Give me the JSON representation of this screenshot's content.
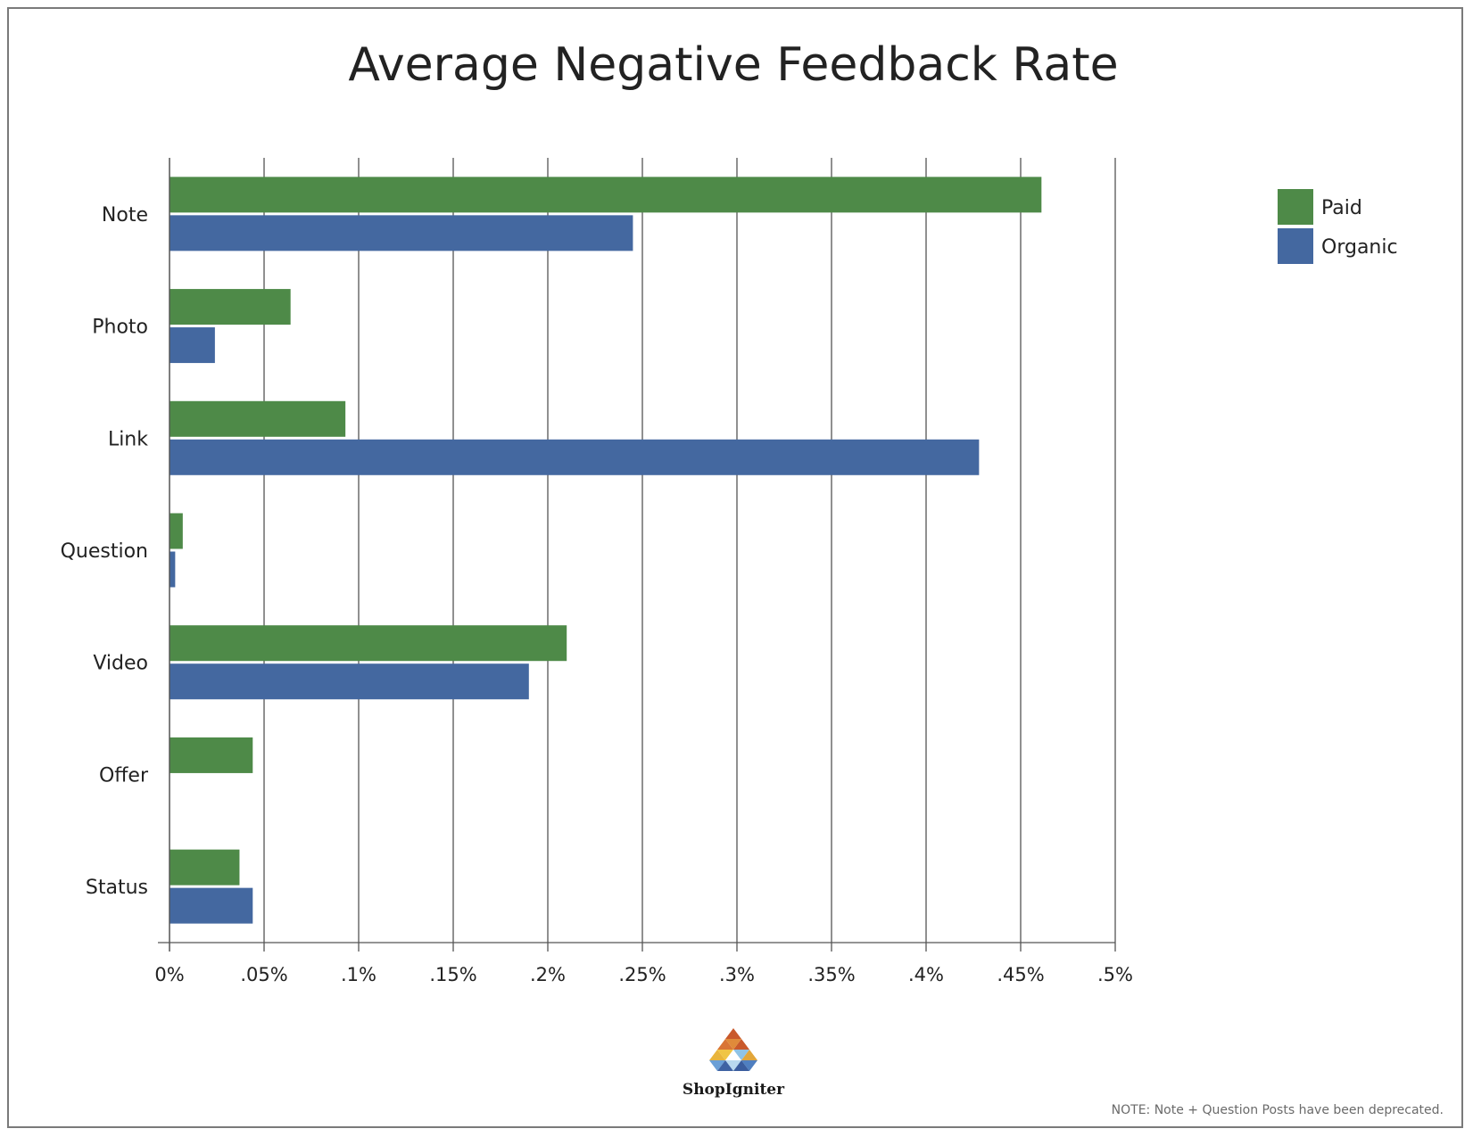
{
  "chart_data": {
    "type": "bar",
    "orientation": "horizontal",
    "title": "Average Negative Feedback Rate",
    "categories": [
      "Note",
      "Photo",
      "Link",
      "Question",
      "Video",
      "Offer",
      "Status"
    ],
    "series": [
      {
        "name": "Paid",
        "color": "#4e8a48",
        "values": [
          0.461,
          0.064,
          0.093,
          0.007,
          0.21,
          0.044,
          0.037
        ]
      },
      {
        "name": "Organic",
        "color": "#4468a0",
        "values": [
          0.245,
          0.024,
          0.428,
          0.003,
          0.19,
          null,
          0.044
        ]
      }
    ],
    "xlim": [
      0,
      0.5
    ],
    "x_ticks": [
      0,
      0.05,
      0.1,
      0.15,
      0.2,
      0.25,
      0.3,
      0.35,
      0.4,
      0.45,
      0.5
    ],
    "x_tick_labels": [
      "0%",
      ".05%",
      ".1%",
      ".15%",
      ".2%",
      ".25%",
      ".3%",
      ".35%",
      ".4%",
      ".45%",
      ".5%"
    ],
    "xlabel": "",
    "ylabel": "",
    "grid": "vertical",
    "legend_position": "top-right"
  },
  "branding": {
    "logo_text": "ShopIgniter"
  },
  "footnote": "NOTE: Note + Question Posts have been deprecated."
}
